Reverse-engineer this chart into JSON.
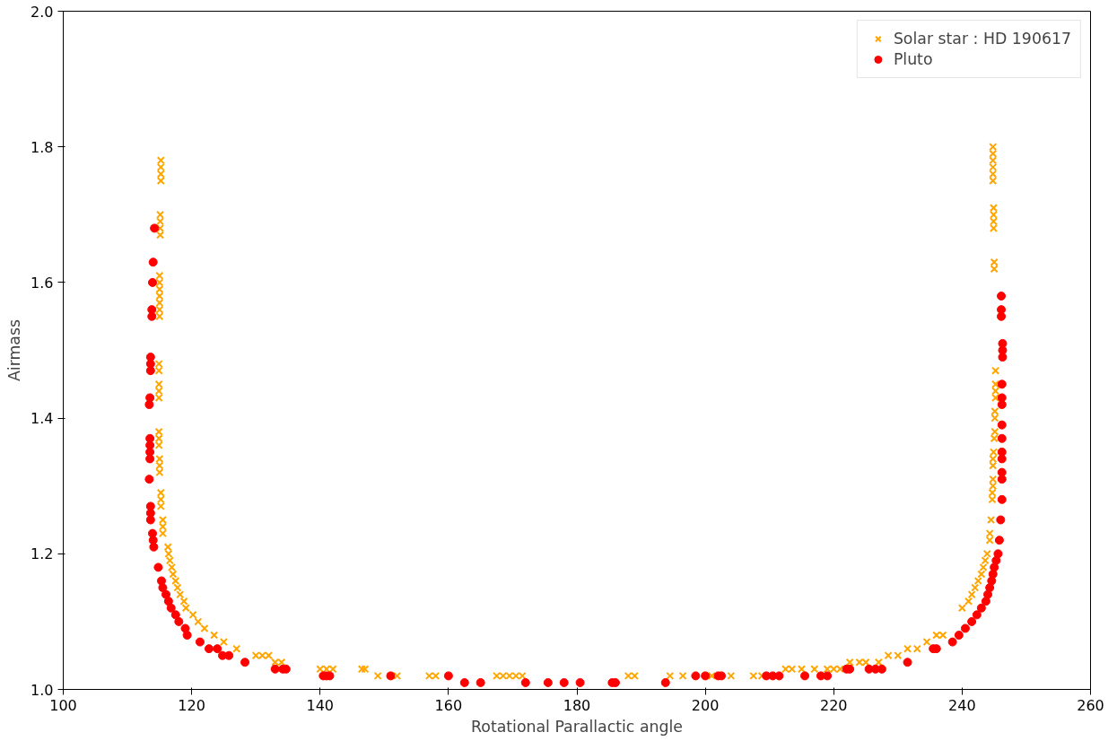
{
  "chart_data": {
    "type": "scatter",
    "xlabel": "Rotational Parallactic angle",
    "ylabel": "Airmass",
    "xlim": [
      100,
      260
    ],
    "ylim": [
      1.0,
      2.0
    ],
    "xticks": [
      100,
      120,
      140,
      160,
      180,
      200,
      220,
      240,
      260
    ],
    "yticks": [
      {
        "value": 1.0,
        "label": "1.0"
      },
      1.2,
      1.4,
      1.6,
      1.8,
      {
        "value": 2.0,
        "label": "2.0"
      }
    ],
    "grid": false,
    "legend": "top right",
    "series": [
      {
        "name": "Solar star : HD 190617",
        "color": "#ffa500",
        "marker": "cross",
        "x": [
          115.2,
          115.2,
          115.2,
          115.2,
          115.1,
          115.1,
          115.1,
          115.1,
          115.0,
          115.0,
          115.0,
          115.0,
          115.0,
          115.0,
          115.0,
          114.9,
          114.9,
          114.9,
          114.9,
          114.9,
          114.9,
          114.9,
          114.9,
          115.0,
          115.0,
          115.0,
          115.2,
          115.2,
          115.2,
          115.5,
          115.5,
          115.5,
          116.3,
          116.4,
          116.6,
          116.9,
          117.1,
          117.5,
          117.8,
          118.2,
          118.8,
          119.1,
          120.2,
          121,
          122,
          123.5,
          125,
          127,
          130,
          131,
          132,
          133,
          134,
          140,
          141,
          142,
          146.5,
          147,
          149,
          151,
          152,
          157,
          158,
          167.5,
          168.5,
          169.5,
          170.5,
          171.5,
          188,
          189,
          194.5,
          196.5,
          201,
          202.5,
          204,
          207.5,
          208.8,
          212.5,
          213.5,
          215,
          217,
          219,
          220,
          221,
          222.5,
          224,
          225,
          227,
          228.5,
          230,
          231.5,
          233,
          234.5,
          236,
          237,
          240,
          241,
          241.5,
          242,
          242.5,
          243,
          243.3,
          243.6,
          243.9,
          244.3,
          244.3,
          244.5,
          244.7,
          244.7,
          244.8,
          244.8,
          244.8,
          244.8,
          244.9,
          245.0,
          245.1,
          245.1,
          245.1,
          245.2,
          245.2,
          245.2,
          245.2,
          245.0,
          245.0,
          244.9,
          244.9,
          244.9,
          244.9,
          244.8,
          244.8,
          244.8,
          244.8,
          244.8,
          244.8
        ],
        "values": [
          1.78,
          1.77,
          1.76,
          1.75,
          1.7,
          1.69,
          1.68,
          1.67,
          1.61,
          1.6,
          1.59,
          1.58,
          1.57,
          1.56,
          1.55,
          1.48,
          1.47,
          1.45,
          1.44,
          1.43,
          1.38,
          1.37,
          1.36,
          1.34,
          1.33,
          1.32,
          1.29,
          1.28,
          1.27,
          1.25,
          1.24,
          1.23,
          1.21,
          1.2,
          1.19,
          1.18,
          1.17,
          1.16,
          1.15,
          1.14,
          1.13,
          1.12,
          1.11,
          1.1,
          1.09,
          1.08,
          1.07,
          1.06,
          1.05,
          1.05,
          1.05,
          1.04,
          1.04,
          1.03,
          1.03,
          1.03,
          1.03,
          1.03,
          1.02,
          1.02,
          1.02,
          1.02,
          1.02,
          1.02,
          1.02,
          1.02,
          1.02,
          1.02,
          1.02,
          1.02,
          1.02,
          1.02,
          1.02,
          1.02,
          1.02,
          1.02,
          1.02,
          1.03,
          1.03,
          1.03,
          1.03,
          1.03,
          1.03,
          1.03,
          1.04,
          1.04,
          1.04,
          1.04,
          1.05,
          1.05,
          1.06,
          1.06,
          1.07,
          1.08,
          1.08,
          1.12,
          1.13,
          1.14,
          1.15,
          1.16,
          1.17,
          1.18,
          1.19,
          1.2,
          1.22,
          1.23,
          1.25,
          1.28,
          1.29,
          1.3,
          1.31,
          1.33,
          1.34,
          1.35,
          1.37,
          1.38,
          1.4,
          1.41,
          1.43,
          1.44,
          1.45,
          1.47,
          1.63,
          1.62,
          1.71,
          1.7,
          1.69,
          1.68,
          1.8,
          1.79,
          1.78,
          1.77,
          1.76,
          1.75
        ]
      },
      {
        "name": "Pluto",
        "color": "#ff0000",
        "marker": "circle",
        "x": [
          114.2,
          114.0,
          113.9,
          113.8,
          113.8,
          113.6,
          113.6,
          113.6,
          113.5,
          113.4,
          113.5,
          113.5,
          113.5,
          113.5,
          113.4,
          113.6,
          113.6,
          113.6,
          113.9,
          114.0,
          114.1,
          114.8,
          115.3,
          115.5,
          116.0,
          116.4,
          116.8,
          117.5,
          118.0,
          119.0,
          119.3,
          121.3,
          122.7,
          124.0,
          124.8,
          125.8,
          128.3,
          133.0,
          134.2,
          134.7,
          140.5,
          141.0,
          141.5,
          151.0,
          160.0,
          162.5,
          165.0,
          172.0,
          175.5,
          178.0,
          180.5,
          185.5,
          186.0,
          193.8,
          198.5,
          200.0,
          202.0,
          202.5,
          209.5,
          210.5,
          211.5,
          215.5,
          218.0,
          219.0,
          222.0,
          222.5,
          225.5,
          226.5,
          227.5,
          231.5,
          235.5,
          236.0,
          238.5,
          239.5,
          240.5,
          241.5,
          242.3,
          243.0,
          243.7,
          244.0,
          244.3,
          244.6,
          244.8,
          245.0,
          245.3,
          245.6,
          245.8,
          246.0,
          246.2,
          246.2,
          246.2,
          246.2,
          246.2,
          246.2,
          246.2,
          246.2,
          246.2,
          246.2,
          246.3,
          246.3,
          246.3,
          246.1,
          246.1,
          246.1
        ],
        "values": [
          1.68,
          1.63,
          1.6,
          1.56,
          1.55,
          1.49,
          1.48,
          1.47,
          1.43,
          1.42,
          1.37,
          1.36,
          1.35,
          1.34,
          1.31,
          1.27,
          1.26,
          1.25,
          1.23,
          1.22,
          1.21,
          1.18,
          1.16,
          1.15,
          1.14,
          1.13,
          1.12,
          1.11,
          1.1,
          1.09,
          1.08,
          1.07,
          1.06,
          1.06,
          1.05,
          1.05,
          1.04,
          1.03,
          1.03,
          1.03,
          1.02,
          1.02,
          1.02,
          1.02,
          1.02,
          1.01,
          1.01,
          1.01,
          1.01,
          1.01,
          1.01,
          1.01,
          1.01,
          1.01,
          1.02,
          1.02,
          1.02,
          1.02,
          1.02,
          1.02,
          1.02,
          1.02,
          1.02,
          1.02,
          1.03,
          1.03,
          1.03,
          1.03,
          1.03,
          1.04,
          1.06,
          1.06,
          1.07,
          1.08,
          1.09,
          1.1,
          1.11,
          1.12,
          1.13,
          1.14,
          1.15,
          1.16,
          1.17,
          1.18,
          1.19,
          1.2,
          1.22,
          1.25,
          1.28,
          1.31,
          1.32,
          1.34,
          1.35,
          1.37,
          1.39,
          1.42,
          1.43,
          1.45,
          1.49,
          1.5,
          1.51,
          1.55,
          1.56,
          1.58
        ]
      }
    ]
  }
}
